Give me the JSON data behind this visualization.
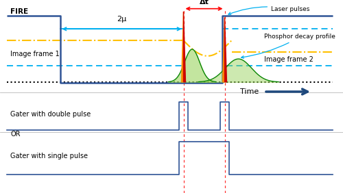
{
  "fig_width": 5.0,
  "fig_height": 2.82,
  "dpi": 100,
  "bg_color": "#ffffff",
  "fire_color": "#2f5496",
  "cyan_color": "#00b0f0",
  "orange_color": "#ffc000",
  "dotted_color": "#000000",
  "red_dash_color": "#ff0000",
  "green_fill_color": "#92d050",
  "pulse_color": "#2f5496",
  "time_arrow_color": "#1f497d",
  "t_drop": 0.175,
  "t_laser1": 0.535,
  "t_laser2": 0.655,
  "t_rise": 0.648,
  "labels": {
    "fire": "FIRE",
    "two_mu": "2μ",
    "image_frame1": "Image frame 1",
    "image_frame2": "Image frame 2",
    "laser_pulses": "Laser pulses",
    "phosphor_decay": "Phosphor decay profile",
    "gater_double": "Gater with double pulse",
    "or": "OR",
    "gater_single": "Gater with single pulse",
    "time": "Time",
    "delta_t": "Δt"
  }
}
